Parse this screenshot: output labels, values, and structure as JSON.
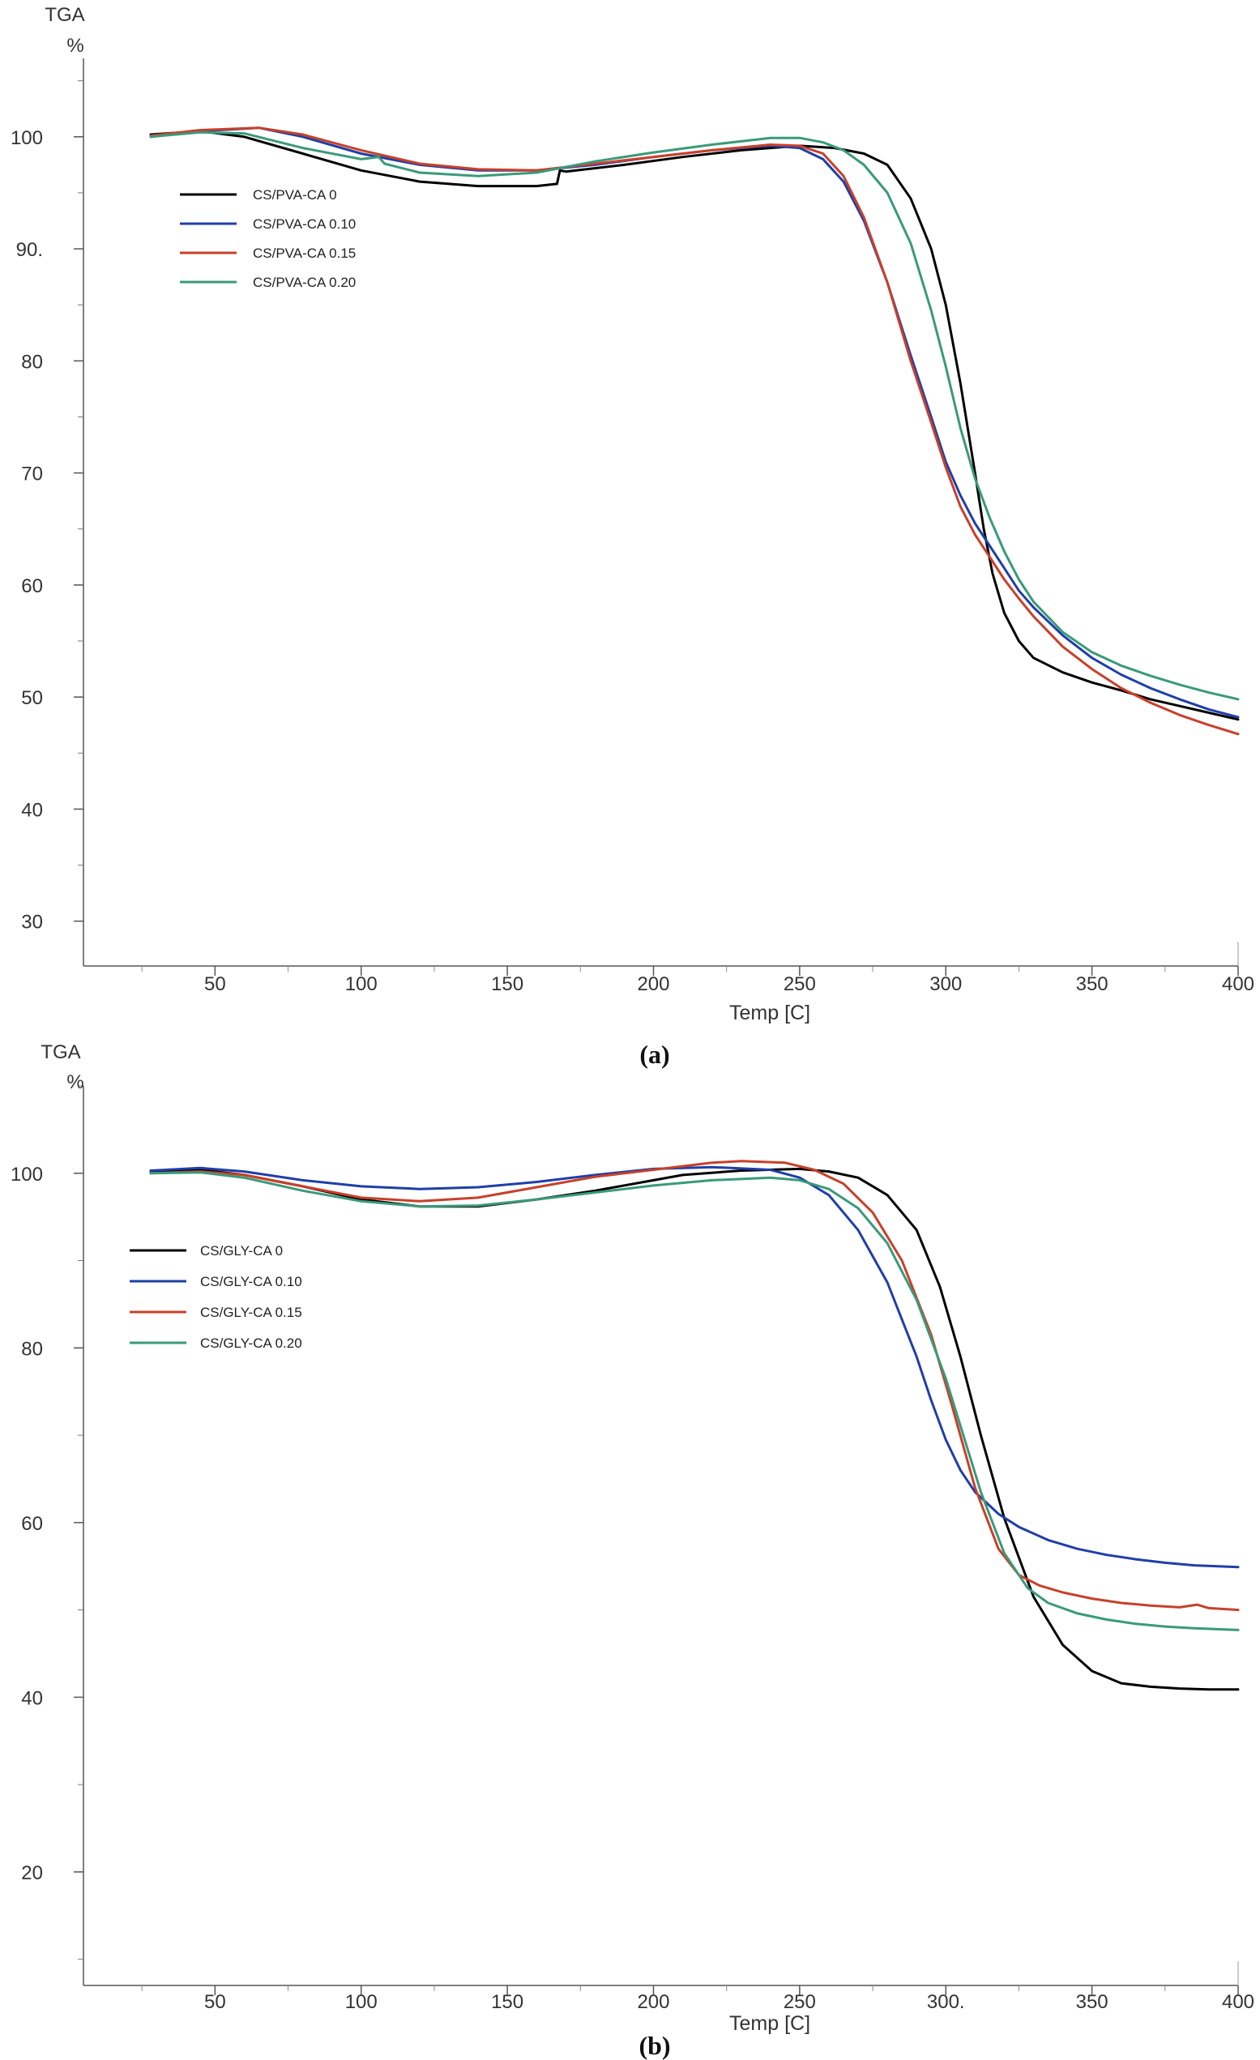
{
  "chart_data": [
    {
      "type": "line",
      "panel_label": "(a)",
      "ylabel_top": "TGA",
      "ylabel_unit": "%",
      "xlabel": "Temp  [C]",
      "xlim": [
        5,
        400
      ],
      "ylim": [
        26,
        107
      ],
      "xticks": [
        50,
        100,
        150,
        200,
        250,
        300,
        350,
        400
      ],
      "yticks": [
        30,
        40,
        50,
        60,
        70,
        80,
        90,
        100
      ],
      "ytick_labels": [
        "30",
        "40",
        "50",
        "60",
        "70",
        "80",
        "90.",
        "100"
      ],
      "legend_placement": "top-left",
      "series": [
        {
          "name": "CS/PVA-CA 0",
          "color": "#000000",
          "x": [
            28,
            45,
            60,
            80,
            100,
            120,
            140,
            160,
            167,
            168,
            170,
            190,
            210,
            230,
            250,
            262,
            272,
            280,
            288,
            295,
            300,
            305,
            310,
            313,
            316,
            320,
            325,
            330,
            340,
            350,
            360,
            370,
            380,
            390,
            400
          ],
          "y": [
            100.2,
            100.5,
            100.0,
            98.5,
            97.0,
            96.0,
            95.6,
            95.6,
            95.8,
            97.0,
            96.9,
            97.5,
            98.2,
            98.8,
            99.2,
            99.0,
            98.5,
            97.5,
            94.5,
            90.0,
            85.0,
            78.0,
            70.0,
            65.0,
            61.0,
            57.5,
            55.0,
            53.5,
            52.2,
            51.3,
            50.6,
            49.8,
            49.2,
            48.6,
            48.0
          ]
        },
        {
          "name": "CS/PVA-CA 0.10",
          "color": "#1f3fa8",
          "x": [
            28,
            45,
            65,
            80,
            100,
            120,
            140,
            160,
            180,
            200,
            220,
            240,
            250,
            258,
            265,
            272,
            280,
            288,
            295,
            300,
            305,
            310,
            315,
            320,
            325,
            330,
            340,
            350,
            360,
            370,
            380,
            390,
            400
          ],
          "y": [
            100.0,
            100.5,
            100.8,
            100.0,
            98.5,
            97.5,
            97.0,
            97.0,
            97.5,
            98.2,
            98.8,
            99.2,
            99.0,
            98.0,
            96.0,
            92.5,
            87.0,
            80.5,
            75.0,
            71.0,
            68.0,
            65.5,
            63.5,
            61.5,
            59.5,
            58.0,
            55.5,
            53.5,
            52.0,
            50.8,
            49.8,
            48.9,
            48.2
          ]
        },
        {
          "name": "CS/PVA-CA 0.15",
          "color": "#c8402a",
          "x": [
            28,
            45,
            65,
            80,
            100,
            120,
            140,
            160,
            180,
            200,
            220,
            240,
            250,
            258,
            265,
            272,
            280,
            288,
            295,
            300,
            305,
            310,
            315,
            320,
            325,
            330,
            340,
            350,
            360,
            370,
            380,
            390,
            400
          ],
          "y": [
            100.1,
            100.6,
            100.8,
            100.2,
            98.8,
            97.6,
            97.1,
            97.0,
            97.6,
            98.2,
            98.8,
            99.3,
            99.2,
            98.5,
            96.5,
            92.8,
            87.0,
            80.0,
            74.5,
            70.5,
            67.0,
            64.5,
            62.5,
            60.5,
            58.8,
            57.2,
            54.5,
            52.5,
            50.8,
            49.5,
            48.4,
            47.5,
            46.7
          ]
        },
        {
          "name": "CS/PVA-CA 0.20",
          "color": "#3a9a7a",
          "x": [
            28,
            45,
            60,
            80,
            100,
            106,
            108,
            120,
            140,
            160,
            180,
            200,
            220,
            240,
            250,
            258,
            265,
            272,
            280,
            288,
            295,
            300,
            305,
            310,
            315,
            320,
            325,
            330,
            340,
            350,
            360,
            370,
            380,
            390,
            400
          ],
          "y": [
            100.0,
            100.4,
            100.3,
            99.0,
            98.0,
            98.2,
            97.6,
            96.8,
            96.5,
            96.8,
            97.8,
            98.6,
            99.3,
            99.9,
            99.9,
            99.5,
            98.8,
            97.5,
            95.0,
            90.5,
            84.5,
            79.5,
            74.0,
            69.5,
            66.0,
            63.0,
            60.5,
            58.5,
            55.8,
            54.0,
            52.8,
            51.9,
            51.1,
            50.4,
            49.8
          ]
        }
      ]
    },
    {
      "type": "line",
      "panel_label": "(b)",
      "ylabel_top": "TGA",
      "ylabel_unit": "%",
      "xlabel": "Temp  [C]",
      "xlim": [
        5,
        400
      ],
      "ylim": [
        7,
        110
      ],
      "xticks": [
        50,
        100,
        150,
        200,
        250,
        300,
        350,
        400
      ],
      "xtick_labels": [
        "50",
        "100",
        "150",
        "200",
        "250",
        "300.",
        "350",
        "400"
      ],
      "yticks": [
        20,
        40,
        60,
        80,
        100
      ],
      "legend_placement": "top-left",
      "series": [
        {
          "name": "CS/GLY-CA 0",
          "color": "#000000",
          "x": [
            28,
            45,
            60,
            80,
            100,
            120,
            140,
            160,
            180,
            200,
            210,
            230,
            250,
            260,
            270,
            280,
            290,
            298,
            305,
            312,
            320,
            330,
            340,
            350,
            360,
            370,
            380,
            390,
            400
          ],
          "y": [
            100.2,
            100.4,
            99.8,
            98.5,
            97.0,
            96.2,
            96.2,
            97.0,
            98.0,
            99.2,
            99.8,
            100.3,
            100.5,
            100.2,
            99.5,
            97.5,
            93.5,
            87.0,
            79.0,
            70.0,
            60.5,
            51.5,
            46.0,
            43.0,
            41.6,
            41.2,
            41.0,
            40.9,
            40.9
          ]
        },
        {
          "name": "CS/GLY-CA 0.10",
          "color": "#1f3fa8",
          "x": [
            28,
            45,
            60,
            80,
            100,
            120,
            140,
            160,
            180,
            200,
            220,
            240,
            250,
            260,
            270,
            280,
            290,
            295,
            300,
            305,
            310,
            318,
            325,
            335,
            345,
            355,
            365,
            375,
            385,
            400
          ],
          "y": [
            100.3,
            100.6,
            100.2,
            99.2,
            98.5,
            98.2,
            98.4,
            99.0,
            99.8,
            100.5,
            100.7,
            100.4,
            99.5,
            97.5,
            93.5,
            87.5,
            79.0,
            74.0,
            69.5,
            66.0,
            63.5,
            61.0,
            59.5,
            58.0,
            57.0,
            56.3,
            55.8,
            55.4,
            55.1,
            54.9
          ]
        },
        {
          "name": "CS/GLY-CA 0.15",
          "color": "#c8402a",
          "x": [
            28,
            45,
            60,
            80,
            100,
            120,
            140,
            160,
            180,
            200,
            220,
            230,
            245,
            255,
            265,
            275,
            285,
            295,
            302,
            310,
            318,
            325,
            332,
            340,
            350,
            360,
            370,
            380,
            386,
            388,
            390,
            400
          ],
          "y": [
            100.0,
            100.2,
            99.8,
            98.5,
            97.2,
            96.8,
            97.2,
            98.4,
            99.6,
            100.4,
            101.2,
            101.4,
            101.2,
            100.4,
            98.8,
            95.5,
            90.0,
            81.5,
            73.5,
            64.0,
            57.0,
            54.0,
            52.8,
            52.0,
            51.3,
            50.8,
            50.5,
            50.3,
            50.6,
            50.4,
            50.2,
            50.0
          ]
        },
        {
          "name": "CS/GLY-CA 0.20",
          "color": "#3a9a7a",
          "x": [
            28,
            45,
            60,
            80,
            100,
            120,
            140,
            160,
            180,
            200,
            220,
            240,
            250,
            260,
            270,
            280,
            290,
            300,
            306,
            312,
            320,
            328,
            335,
            345,
            355,
            365,
            375,
            385,
            400
          ],
          "y": [
            100.0,
            100.1,
            99.5,
            98.0,
            96.8,
            96.2,
            96.3,
            97.0,
            97.8,
            98.6,
            99.2,
            99.5,
            99.2,
            98.2,
            96.0,
            92.0,
            85.5,
            76.5,
            70.0,
            63.5,
            56.5,
            52.5,
            50.8,
            49.6,
            48.9,
            48.4,
            48.1,
            47.9,
            47.7
          ]
        }
      ]
    }
  ]
}
